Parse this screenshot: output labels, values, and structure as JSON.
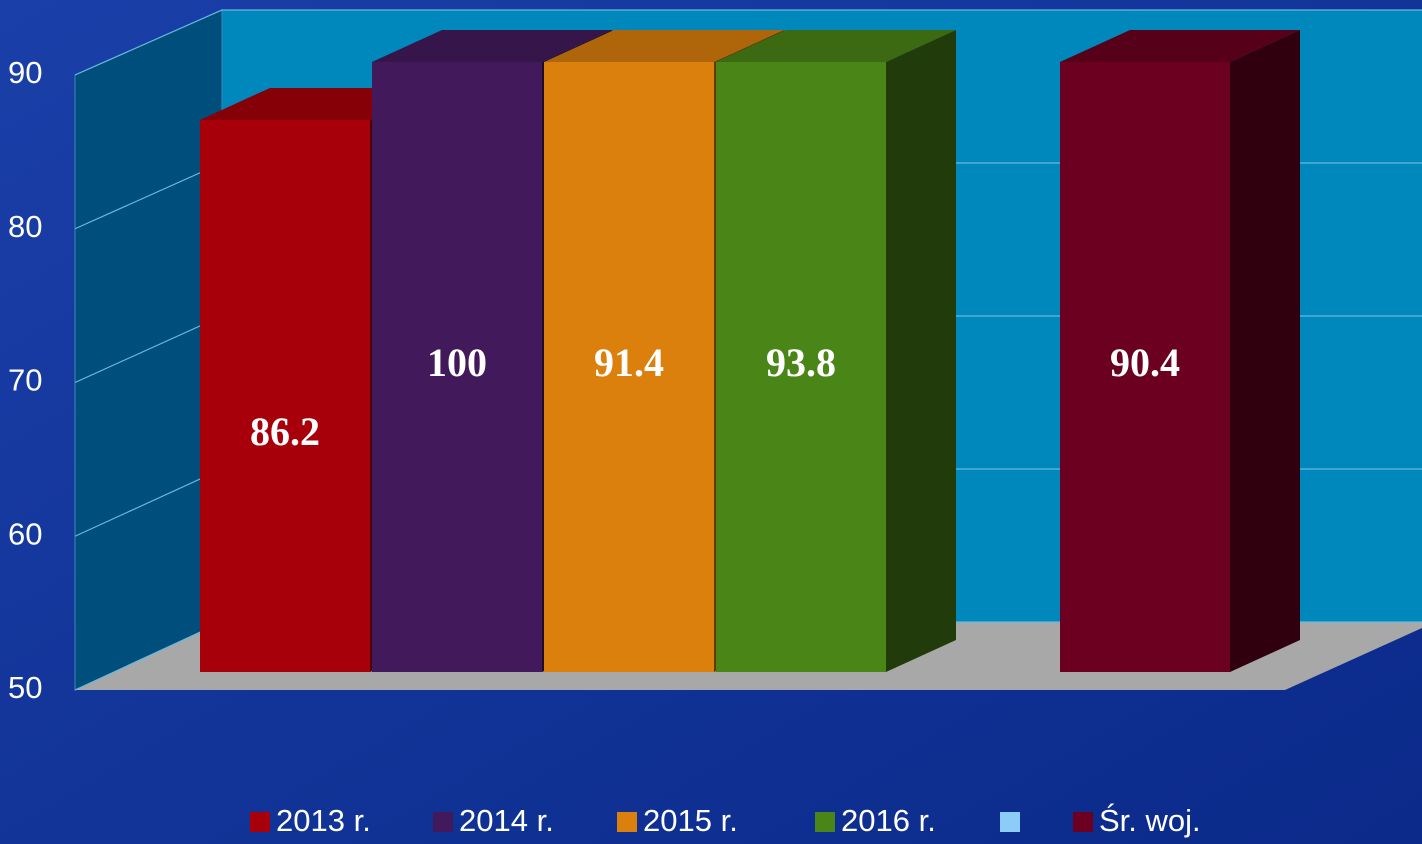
{
  "chart_data": {
    "type": "bar3d",
    "ylim": [
      50,
      90
    ],
    "yticks": [
      50,
      60,
      70,
      80,
      90
    ],
    "series": [
      {
        "name": "2013 r.",
        "color": "#a8000a",
        "values": [
          86.2
        ]
      },
      {
        "name": "2014 r.",
        "color": "#421a5c",
        "values": [
          100
        ]
      },
      {
        "name": "2015 r.",
        "color": "#db800c",
        "values": [
          91.4
        ]
      },
      {
        "name": "2016 r.",
        "color": "#4a8517",
        "values": [
          93.8
        ]
      },
      {
        "name": null,
        "color": "#8ccdf8",
        "values": [
          null
        ]
      },
      {
        "name": "Śr. woj.",
        "color": "#6b0020",
        "values": [
          90.4
        ]
      }
    ]
  }
}
